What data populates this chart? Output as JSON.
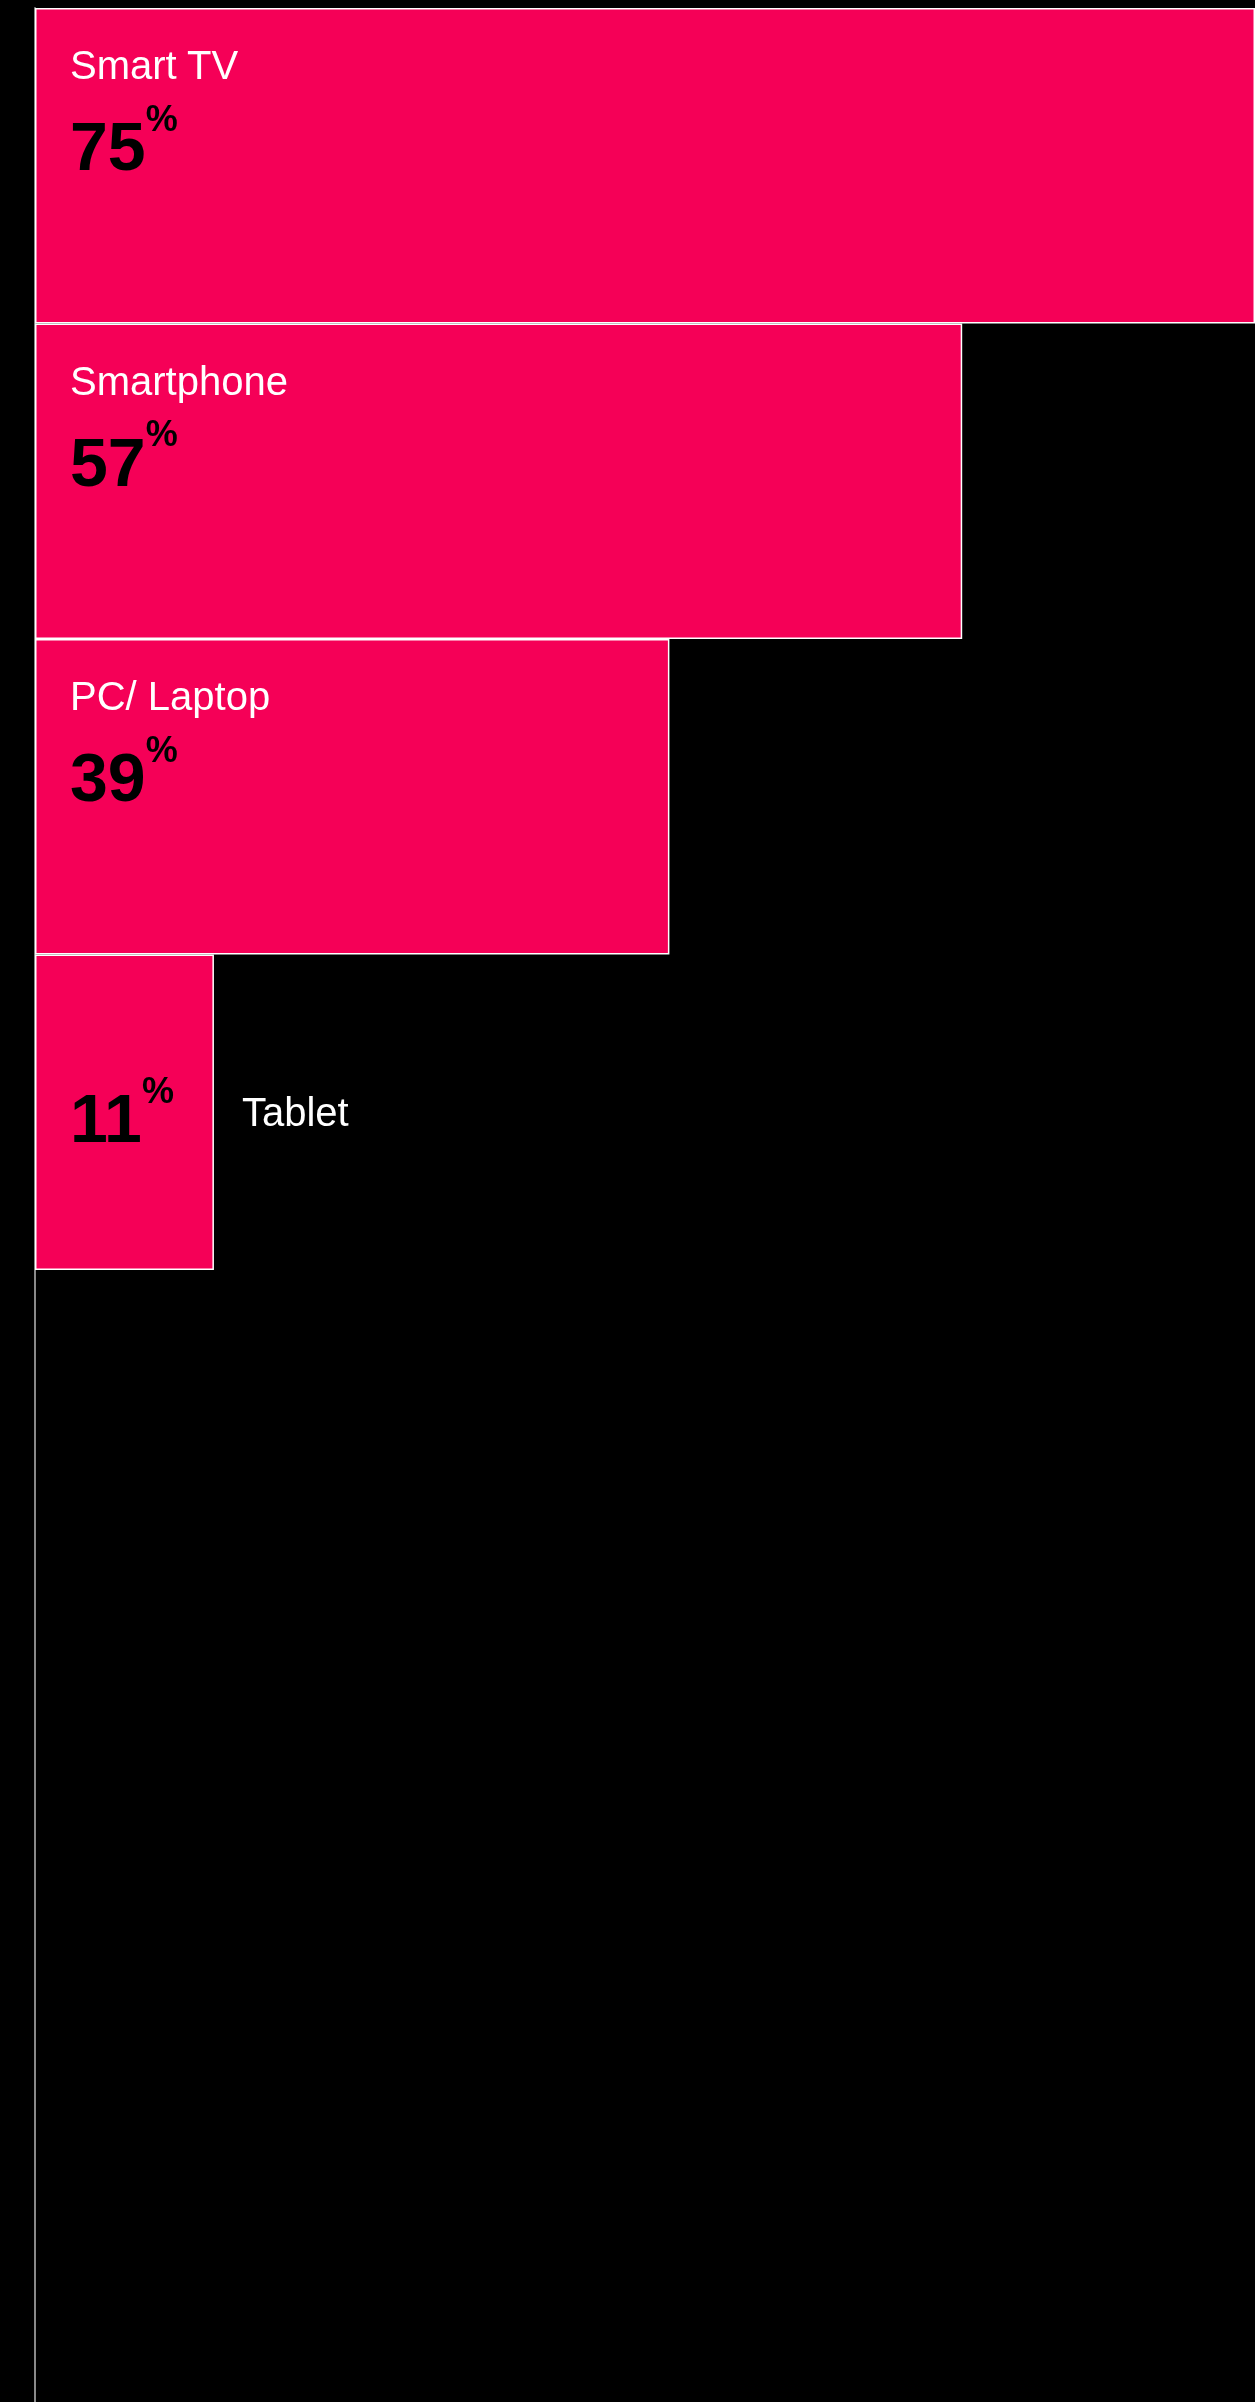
{
  "chart_data": {
    "type": "bar",
    "orientation": "horizontal",
    "categories": [
      "Smart TV",
      "Smartphone",
      "PC/ Laptop",
      "Tablet"
    ],
    "values": [
      75,
      57,
      39,
      11
    ],
    "value_labels": [
      "75%",
      "57%",
      "39%",
      "11%"
    ],
    "color": "#f50057"
  }
}
